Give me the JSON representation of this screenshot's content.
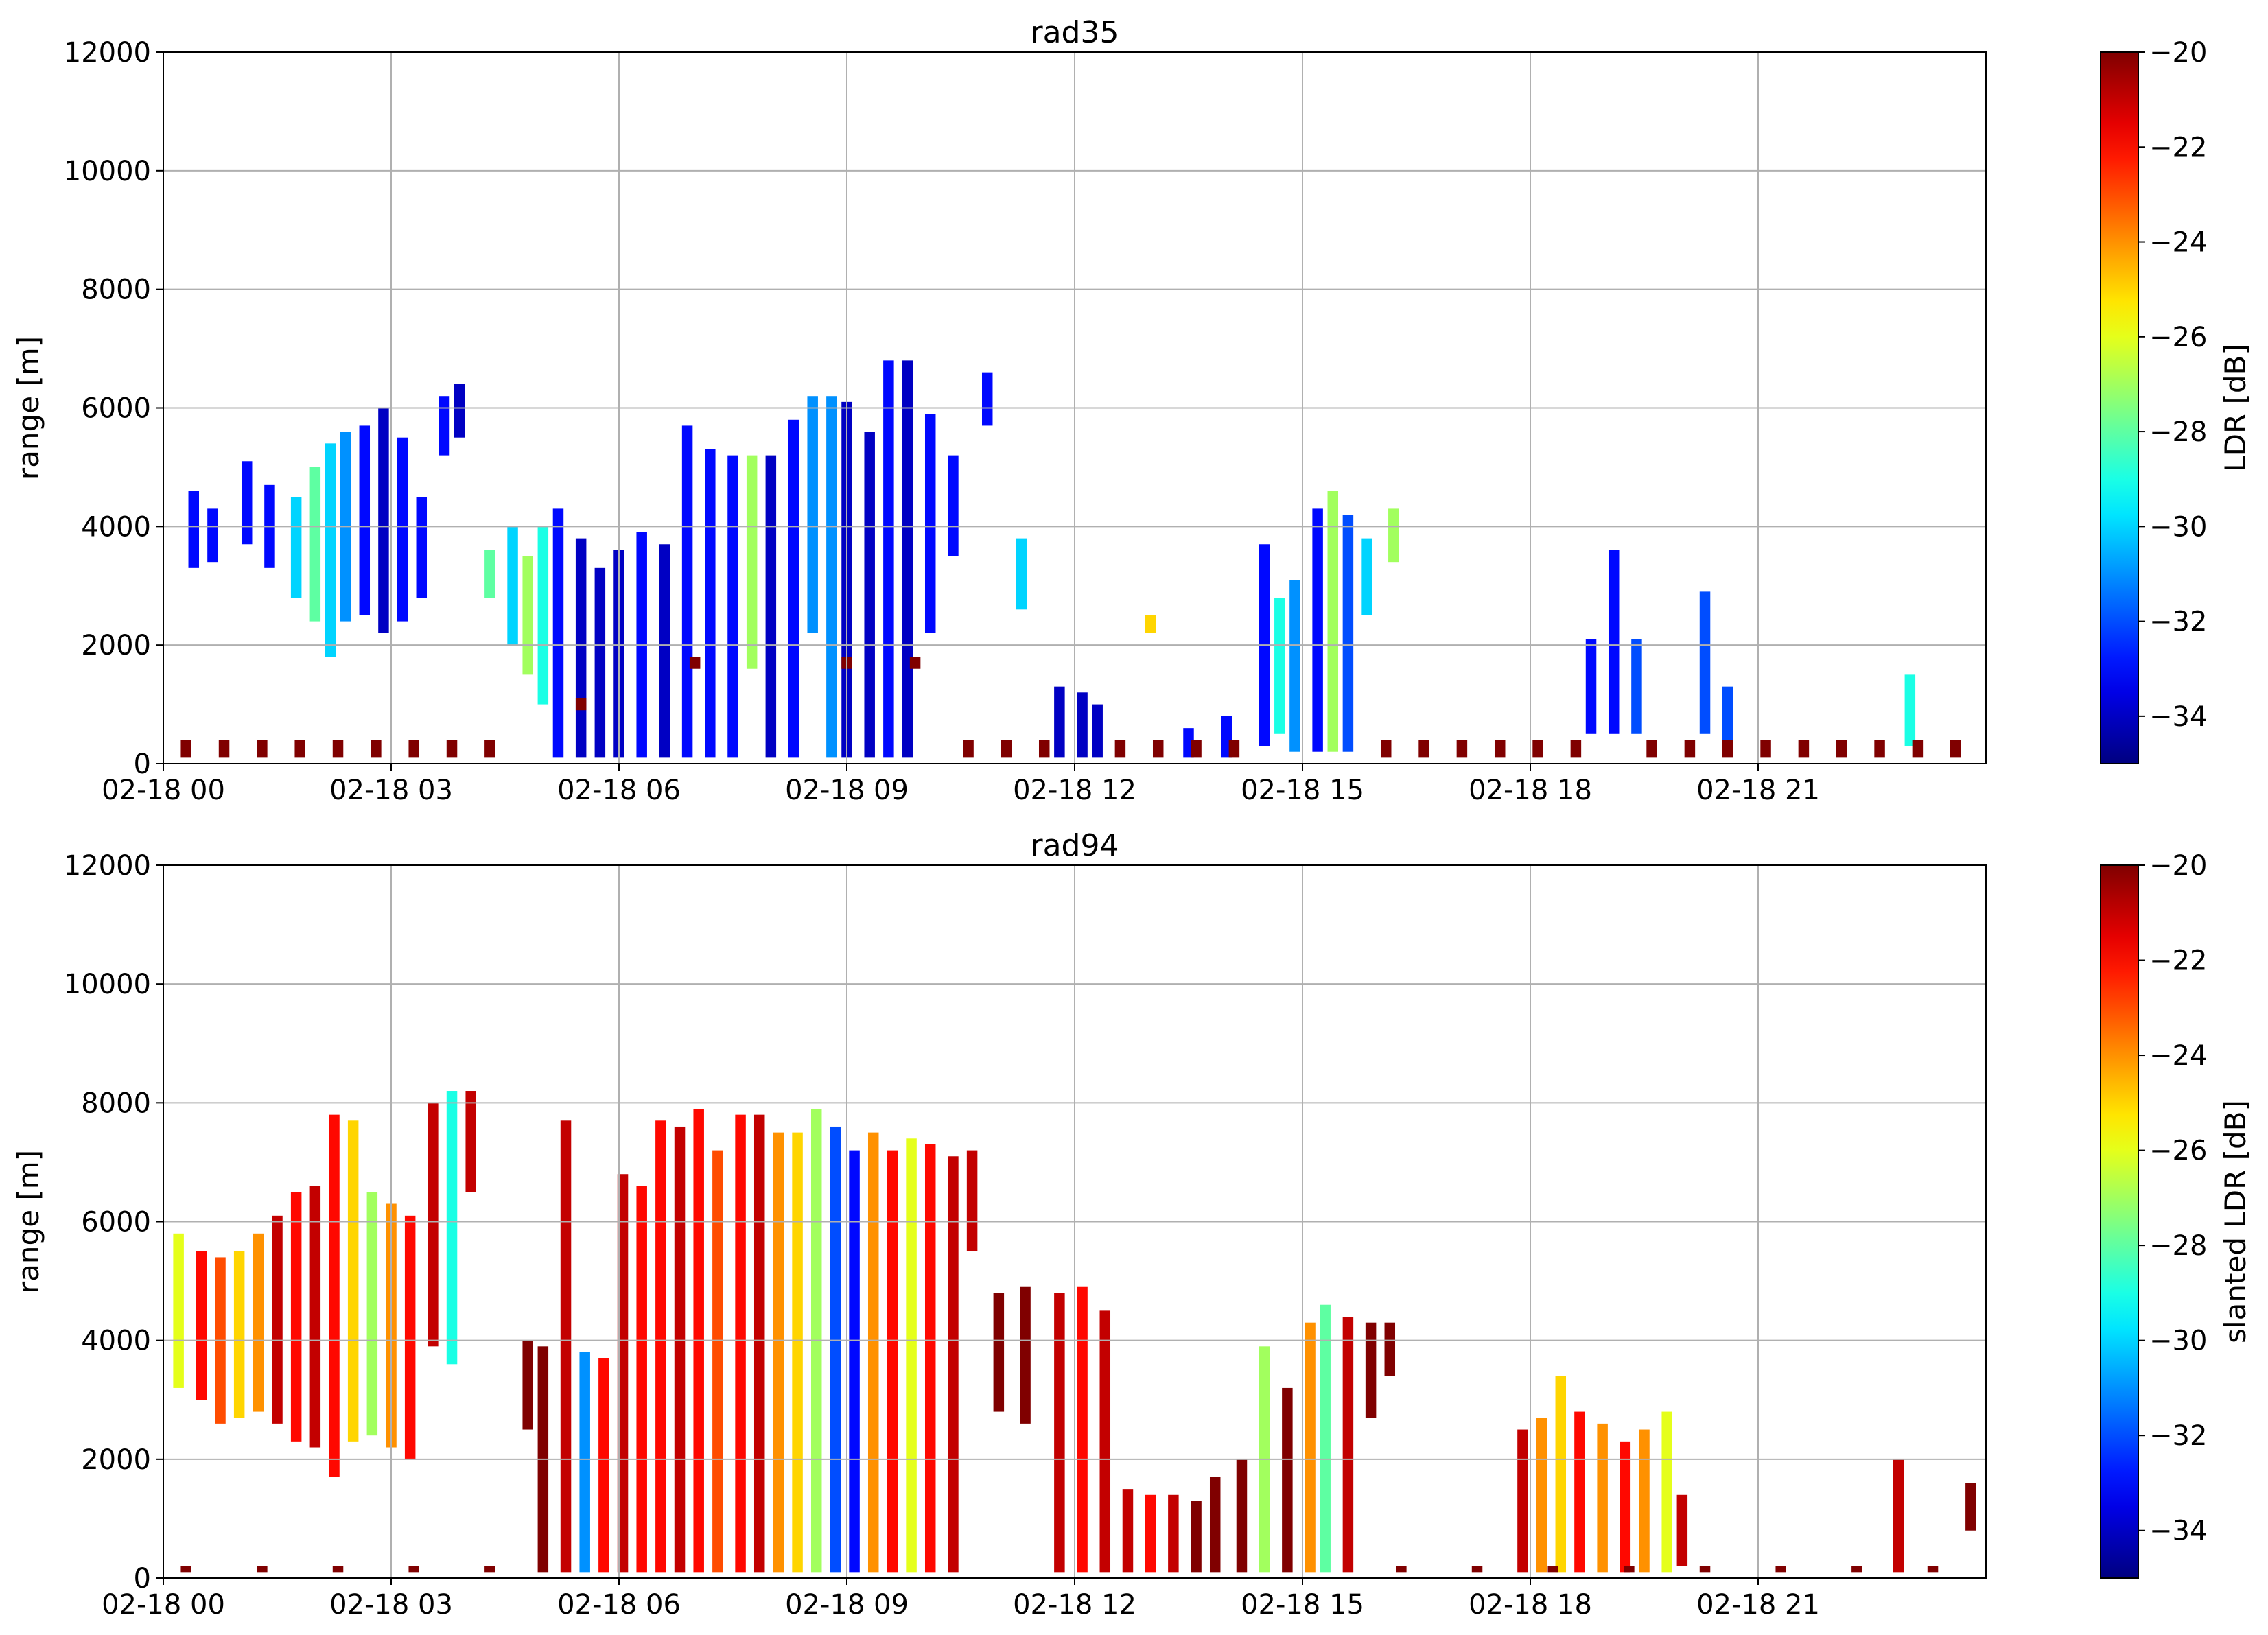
{
  "chart_data": [
    {
      "type": "heatmap",
      "title": "rad35",
      "ylabel": "range [m]",
      "colorbar_label": "LDR [dB]",
      "xlim": [
        0,
        24
      ],
      "xticks": [
        {
          "value": 0,
          "label": "02-18 00"
        },
        {
          "value": 3,
          "label": "02-18 03"
        },
        {
          "value": 6,
          "label": "02-18 06"
        },
        {
          "value": 9,
          "label": "02-18 09"
        },
        {
          "value": 12,
          "label": "02-18 12"
        },
        {
          "value": 15,
          "label": "02-18 15"
        },
        {
          "value": 18,
          "label": "02-18 18"
        },
        {
          "value": 21,
          "label": "02-18 21"
        }
      ],
      "ylim": [
        0,
        12000
      ],
      "yticks": [
        0,
        2000,
        4000,
        6000,
        8000,
        10000,
        12000
      ],
      "grid": true,
      "clim": [
        -35,
        -20
      ],
      "cticks": [
        {
          "value": -34,
          "label": "−34"
        },
        {
          "value": -32,
          "label": "−32"
        },
        {
          "value": -30,
          "label": "−30"
        },
        {
          "value": -28,
          "label": "−28"
        },
        {
          "value": -26,
          "label": "−26"
        },
        {
          "value": -24,
          "label": "−24"
        },
        {
          "value": -22,
          "label": "−22"
        },
        {
          "value": -20,
          "label": "−20"
        }
      ],
      "colormap": "jet",
      "x": [
        0.4,
        0.65,
        1.1,
        1.4,
        1.75,
        2.0,
        2.2,
        2.4,
        2.65,
        2.9,
        3.15,
        3.4,
        3.7,
        3.9,
        4.3,
        4.6,
        4.8,
        5.0,
        5.2,
        5.5,
        5.75,
        6.0,
        6.3,
        6.6,
        6.9,
        7.2,
        7.5,
        7.75,
        8.0,
        8.3,
        8.55,
        8.8,
        9.0,
        9.3,
        9.55,
        9.8,
        10.1,
        10.4,
        10.85,
        11.3,
        11.8,
        12.1,
        12.3,
        13.0,
        13.5,
        14.0,
        14.5,
        14.7,
        14.9,
        15.2,
        15.4,
        15.6,
        15.85,
        16.2,
        18.8,
        19.1,
        19.4,
        20.3,
        20.6,
        23.0,
        5.5,
        7.0,
        9.0,
        9.9,
        0.3,
        0.8,
        1.3,
        1.8,
        2.3,
        2.8,
        3.3,
        3.8,
        4.3,
        10.6,
        11.1,
        11.6,
        12.6,
        13.1,
        13.6,
        14.1,
        16.1,
        16.6,
        17.1,
        17.6,
        18.1,
        18.6,
        19.6,
        20.1,
        20.6,
        21.1,
        21.6,
        22.1,
        22.6,
        23.1,
        23.6
      ],
      "y_bottom": [
        3300,
        3400,
        3700,
        3300,
        2800,
        2400,
        1800,
        2400,
        2500,
        2200,
        2400,
        2800,
        5200,
        5500,
        2800,
        2000,
        1500,
        1000,
        100,
        100,
        100,
        100,
        100,
        100,
        100,
        100,
        100,
        1600,
        100,
        100,
        2200,
        100,
        100,
        100,
        100,
        100,
        2200,
        3500,
        5700,
        2600,
        100,
        100,
        100,
        2200,
        100,
        100,
        300,
        500,
        200,
        200,
        200,
        200,
        2500,
        3400,
        500,
        500,
        500,
        500,
        300,
        300,
        900,
        1600,
        1600,
        1600,
        100,
        100,
        100,
        100,
        100,
        100,
        100,
        100,
        100,
        100,
        100,
        100,
        100,
        100,
        100,
        100,
        100,
        100,
        100,
        100,
        100,
        100,
        100,
        100,
        100,
        100,
        100,
        100,
        100,
        100,
        100
      ],
      "y_top": [
        4600,
        4300,
        5100,
        4700,
        4500,
        5000,
        5400,
        5600,
        5700,
        6000,
        5500,
        4500,
        6200,
        6400,
        3600,
        4000,
        3500,
        4000,
        4300,
        3800,
        3300,
        3600,
        3900,
        3700,
        5700,
        5300,
        5200,
        5200,
        5200,
        5800,
        6200,
        6200,
        6100,
        5600,
        6800,
        6800,
        5900,
        5200,
        6600,
        3800,
        1300,
        1200,
        1000,
        2500,
        600,
        800,
        3700,
        2800,
        3100,
        4300,
        4600,
        4200,
        3800,
        4300,
        2100,
        3600,
        2100,
        2900,
        1300,
        1500,
        1100,
        1800,
        1800,
        1800,
        400,
        400,
        400,
        400,
        400,
        400,
        400,
        400,
        400,
        400,
        400,
        400,
        400,
        400,
        400,
        400,
        400,
        400,
        400,
        400,
        400,
        400,
        400,
        400,
        400,
        400,
        400,
        400,
        400,
        400,
        400
      ],
      "values": [
        -33,
        -33,
        -33,
        -33,
        -30,
        -28,
        -30,
        -31,
        -33,
        -34,
        -33,
        -33,
        -33,
        -34,
        -28,
        -30,
        -27,
        -29,
        -33,
        -34,
        -34,
        -34,
        -33,
        -34,
        -33,
        -33,
        -33,
        -27,
        -34,
        -33,
        -31,
        -31,
        -34,
        -34,
        -33,
        -34,
        -33,
        -33,
        -33,
        -30,
        -34,
        -34,
        -34,
        -25,
        -33,
        -33,
        -33,
        -29,
        -31,
        -33,
        -27,
        -32,
        -30,
        -27,
        -33,
        -33,
        -32,
        -32,
        -32,
        -29,
        -20,
        -20,
        -20,
        -20,
        -20,
        -20,
        -20,
        -20,
        -20,
        -20,
        -20,
        -20,
        -20,
        -20,
        -20,
        -20,
        -20,
        -20,
        -20,
        -20,
        -20,
        -20,
        -20,
        -20,
        -20,
        -20,
        -20,
        -20,
        -20,
        -20,
        -20,
        -20,
        -20,
        -20,
        -20
      ]
    },
    {
      "type": "heatmap",
      "title": "rad94",
      "ylabel": "range [m]",
      "colorbar_label": "slanted LDR [dB]",
      "xlim": [
        0,
        24
      ],
      "xticks": [
        {
          "value": 0,
          "label": "02-18 00"
        },
        {
          "value": 3,
          "label": "02-18 03"
        },
        {
          "value": 6,
          "label": "02-18 06"
        },
        {
          "value": 9,
          "label": "02-18 09"
        },
        {
          "value": 12,
          "label": "02-18 12"
        },
        {
          "value": 15,
          "label": "02-18 15"
        },
        {
          "value": 18,
          "label": "02-18 18"
        },
        {
          "value": 21,
          "label": "02-18 21"
        }
      ],
      "ylim": [
        0,
        12000
      ],
      "yticks": [
        0,
        2000,
        4000,
        6000,
        8000,
        10000,
        12000
      ],
      "grid": true,
      "clim": [
        -35,
        -20
      ],
      "cticks": [
        {
          "value": -34,
          "label": "−34"
        },
        {
          "value": -32,
          "label": "−32"
        },
        {
          "value": -30,
          "label": "−30"
        },
        {
          "value": -28,
          "label": "−28"
        },
        {
          "value": -26,
          "label": "−26"
        },
        {
          "value": -24,
          "label": "−24"
        },
        {
          "value": -22,
          "label": "−22"
        },
        {
          "value": -20,
          "label": "−20"
        }
      ],
      "colormap": "jet",
      "x": [
        0.2,
        0.5,
        0.75,
        1.0,
        1.25,
        1.5,
        1.75,
        2.0,
        2.25,
        2.5,
        2.75,
        3.0,
        3.25,
        3.55,
        3.8,
        4.05,
        4.8,
        5.0,
        5.3,
        5.55,
        5.8,
        6.05,
        6.3,
        6.55,
        6.8,
        7.05,
        7.3,
        7.6,
        7.85,
        8.1,
        8.35,
        8.6,
        8.85,
        9.1,
        9.35,
        9.6,
        9.85,
        10.1,
        10.4,
        10.65,
        11.0,
        11.35,
        11.8,
        12.1,
        12.4,
        12.7,
        13.0,
        13.3,
        13.6,
        13.85,
        14.2,
        14.5,
        14.8,
        15.1,
        15.3,
        15.6,
        15.9,
        16.15,
        17.9,
        18.15,
        18.4,
        18.65,
        18.95,
        19.25,
        19.5,
        19.8,
        20.0,
        22.85,
        23.8,
        0.3,
        1.3,
        2.3,
        3.3,
        4.3,
        16.3,
        17.3,
        18.3,
        19.3,
        20.3,
        21.3,
        22.3,
        23.3
      ],
      "y_bottom": [
        3200,
        3000,
        2600,
        2700,
        2800,
        2600,
        2300,
        2200,
        1700,
        2300,
        2400,
        2200,
        2000,
        3900,
        3600,
        6500,
        2500,
        100,
        100,
        100,
        100,
        100,
        100,
        100,
        100,
        100,
        100,
        100,
        100,
        100,
        100,
        100,
        100,
        100,
        100,
        100,
        100,
        100,
        100,
        5500,
        2800,
        2600,
        100,
        100,
        100,
        100,
        100,
        100,
        100,
        100,
        100,
        100,
        100,
        100,
        100,
        100,
        2700,
        3400,
        100,
        100,
        100,
        100,
        100,
        100,
        100,
        100,
        200,
        100,
        800,
        100,
        100,
        100,
        100,
        100,
        100,
        100,
        100,
        100,
        100,
        100,
        100,
        100
      ],
      "y_top": [
        5800,
        5500,
        5400,
        5500,
        5800,
        6100,
        6500,
        6600,
        7800,
        7700,
        6500,
        6300,
        6100,
        8000,
        8200,
        8200,
        4000,
        3900,
        7700,
        3800,
        3700,
        6800,
        6600,
        7700,
        7600,
        7900,
        7200,
        7800,
        7800,
        7500,
        7500,
        7900,
        7600,
        7200,
        7500,
        7200,
        7400,
        7300,
        7100,
        7200,
        4800,
        4900,
        4800,
        4900,
        4500,
        1500,
        1400,
        1400,
        1300,
        1700,
        2000,
        3900,
        3200,
        4300,
        4600,
        4400,
        4300,
        4300,
        2500,
        2700,
        3400,
        2800,
        2600,
        2300,
        2500,
        2800,
        1400,
        2000,
        1600,
        200,
        200,
        200,
        200,
        200,
        200,
        200,
        200,
        200,
        200,
        200,
        200,
        200
      ],
      "values": [
        -26,
        -22,
        -23,
        -25,
        -24,
        -21,
        -22,
        -21,
        -22,
        -25,
        -27,
        -24,
        -22,
        -21,
        -29,
        -21,
        -20,
        -20,
        -21,
        -31,
        -22,
        -21,
        -22,
        -22,
        -21,
        -22,
        -23,
        -22,
        -21,
        -24,
        -25,
        -27,
        -32,
        -33,
        -24,
        -22,
        -26,
        -22,
        -21,
        -21,
        -20,
        -20,
        -21,
        -22,
        -21,
        -21,
        -22,
        -21,
        -20,
        -20,
        -20,
        -27,
        -20,
        -24,
        -28,
        -21,
        -20,
        -20,
        -21,
        -24,
        -25,
        -22,
        -24,
        -22,
        -24,
        -26,
        -21,
        -21,
        -20,
        -20,
        -20,
        -20,
        -20,
        -20,
        -20,
        -20,
        -20,
        -20,
        -20,
        -20,
        -20,
        -20
      ]
    }
  ]
}
